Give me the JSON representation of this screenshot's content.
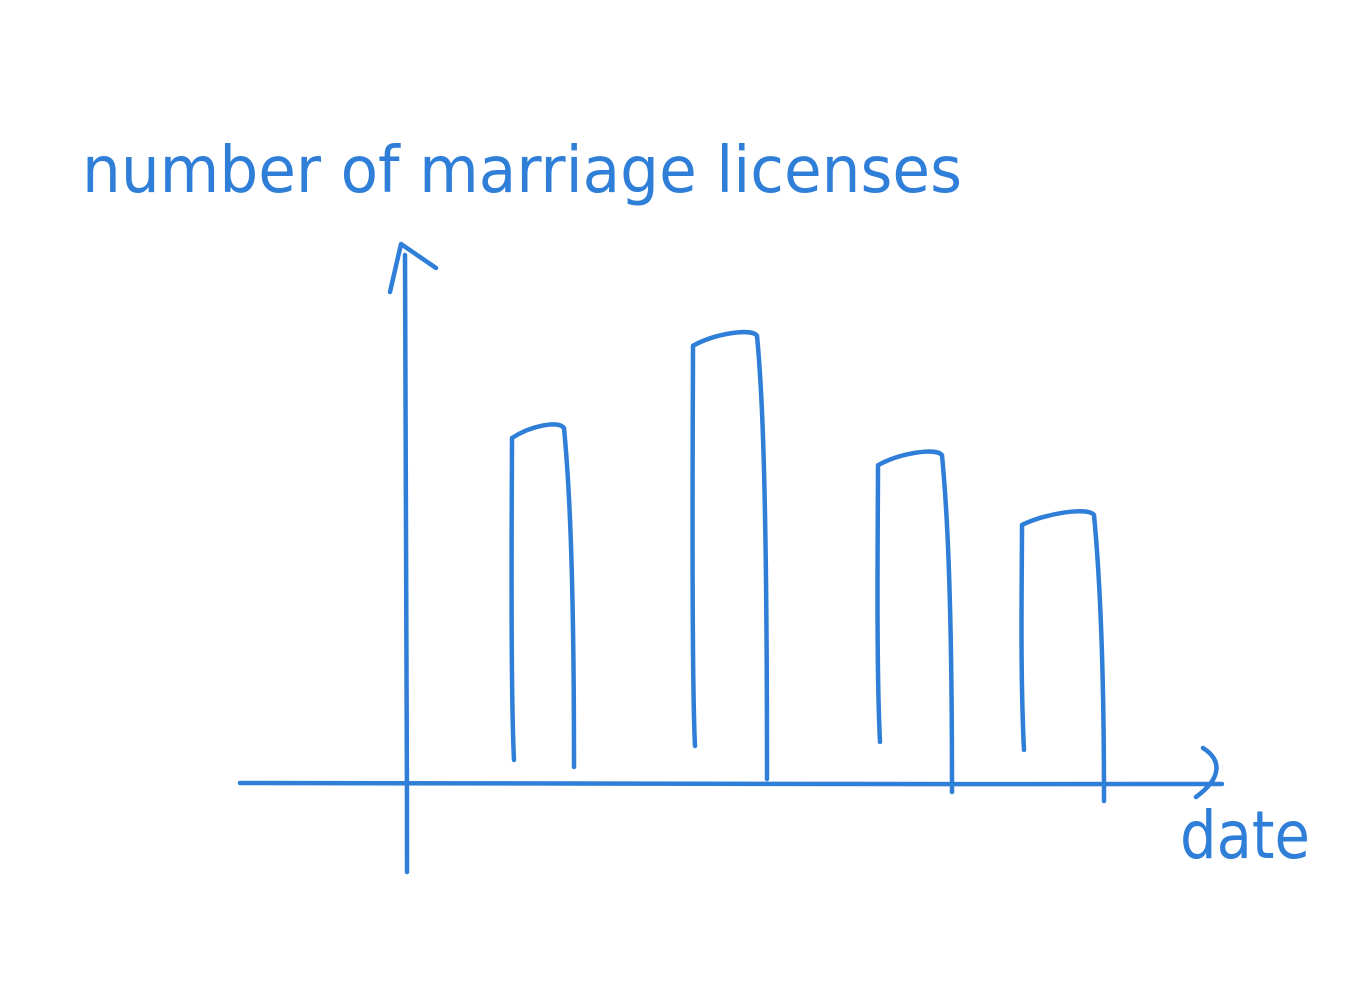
{
  "ink_color": "#2f7ed8",
  "chart_data": {
    "type": "bar",
    "style": "hand-drawn sketch",
    "ylabel": "number of marriage licenses",
    "xlabel": "date",
    "categories": [
      "",
      "",
      "",
      ""
    ],
    "values": [
      6.5,
      8.2,
      6.0,
      4.9
    ],
    "ylim": [
      0,
      10
    ],
    "ticks": "none",
    "grid": false,
    "legend": "none"
  }
}
